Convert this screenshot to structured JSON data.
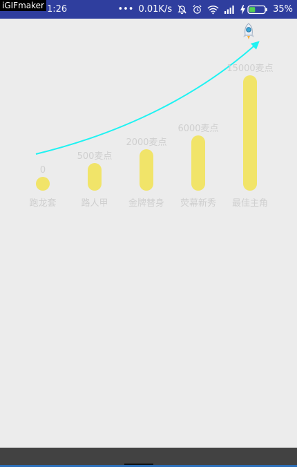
{
  "watermark": "iGIFmaker",
  "status_bar": {
    "time": "1:26",
    "net_speed": "0.01K/s",
    "battery": "35%",
    "dots": "•••"
  },
  "chart_data": {
    "type": "bar",
    "categories": [
      "跑龙套",
      "路人甲",
      "金牌替身",
      "荧幕新秀",
      "最佳主角"
    ],
    "value_labels": [
      "0",
      "500麦点",
      "2000麦点",
      "6000麦点",
      "15000麦点"
    ],
    "values": [
      0,
      500,
      2000,
      6000,
      15000
    ],
    "bar_color": "#f1e469",
    "curve_color": "#1ff2f2",
    "label_color": "#cfcfcf",
    "title": "",
    "xlabel": "",
    "ylabel": "",
    "grid": false,
    "legend": false
  },
  "icons": {
    "rocket": "rocket-icon",
    "silent": "silent-bell-icon",
    "alarm": "alarm-icon",
    "wifi": "wifi-icon",
    "signal": "signal-icon",
    "charging": "charging-bolt-icon",
    "battery": "battery-icon"
  }
}
